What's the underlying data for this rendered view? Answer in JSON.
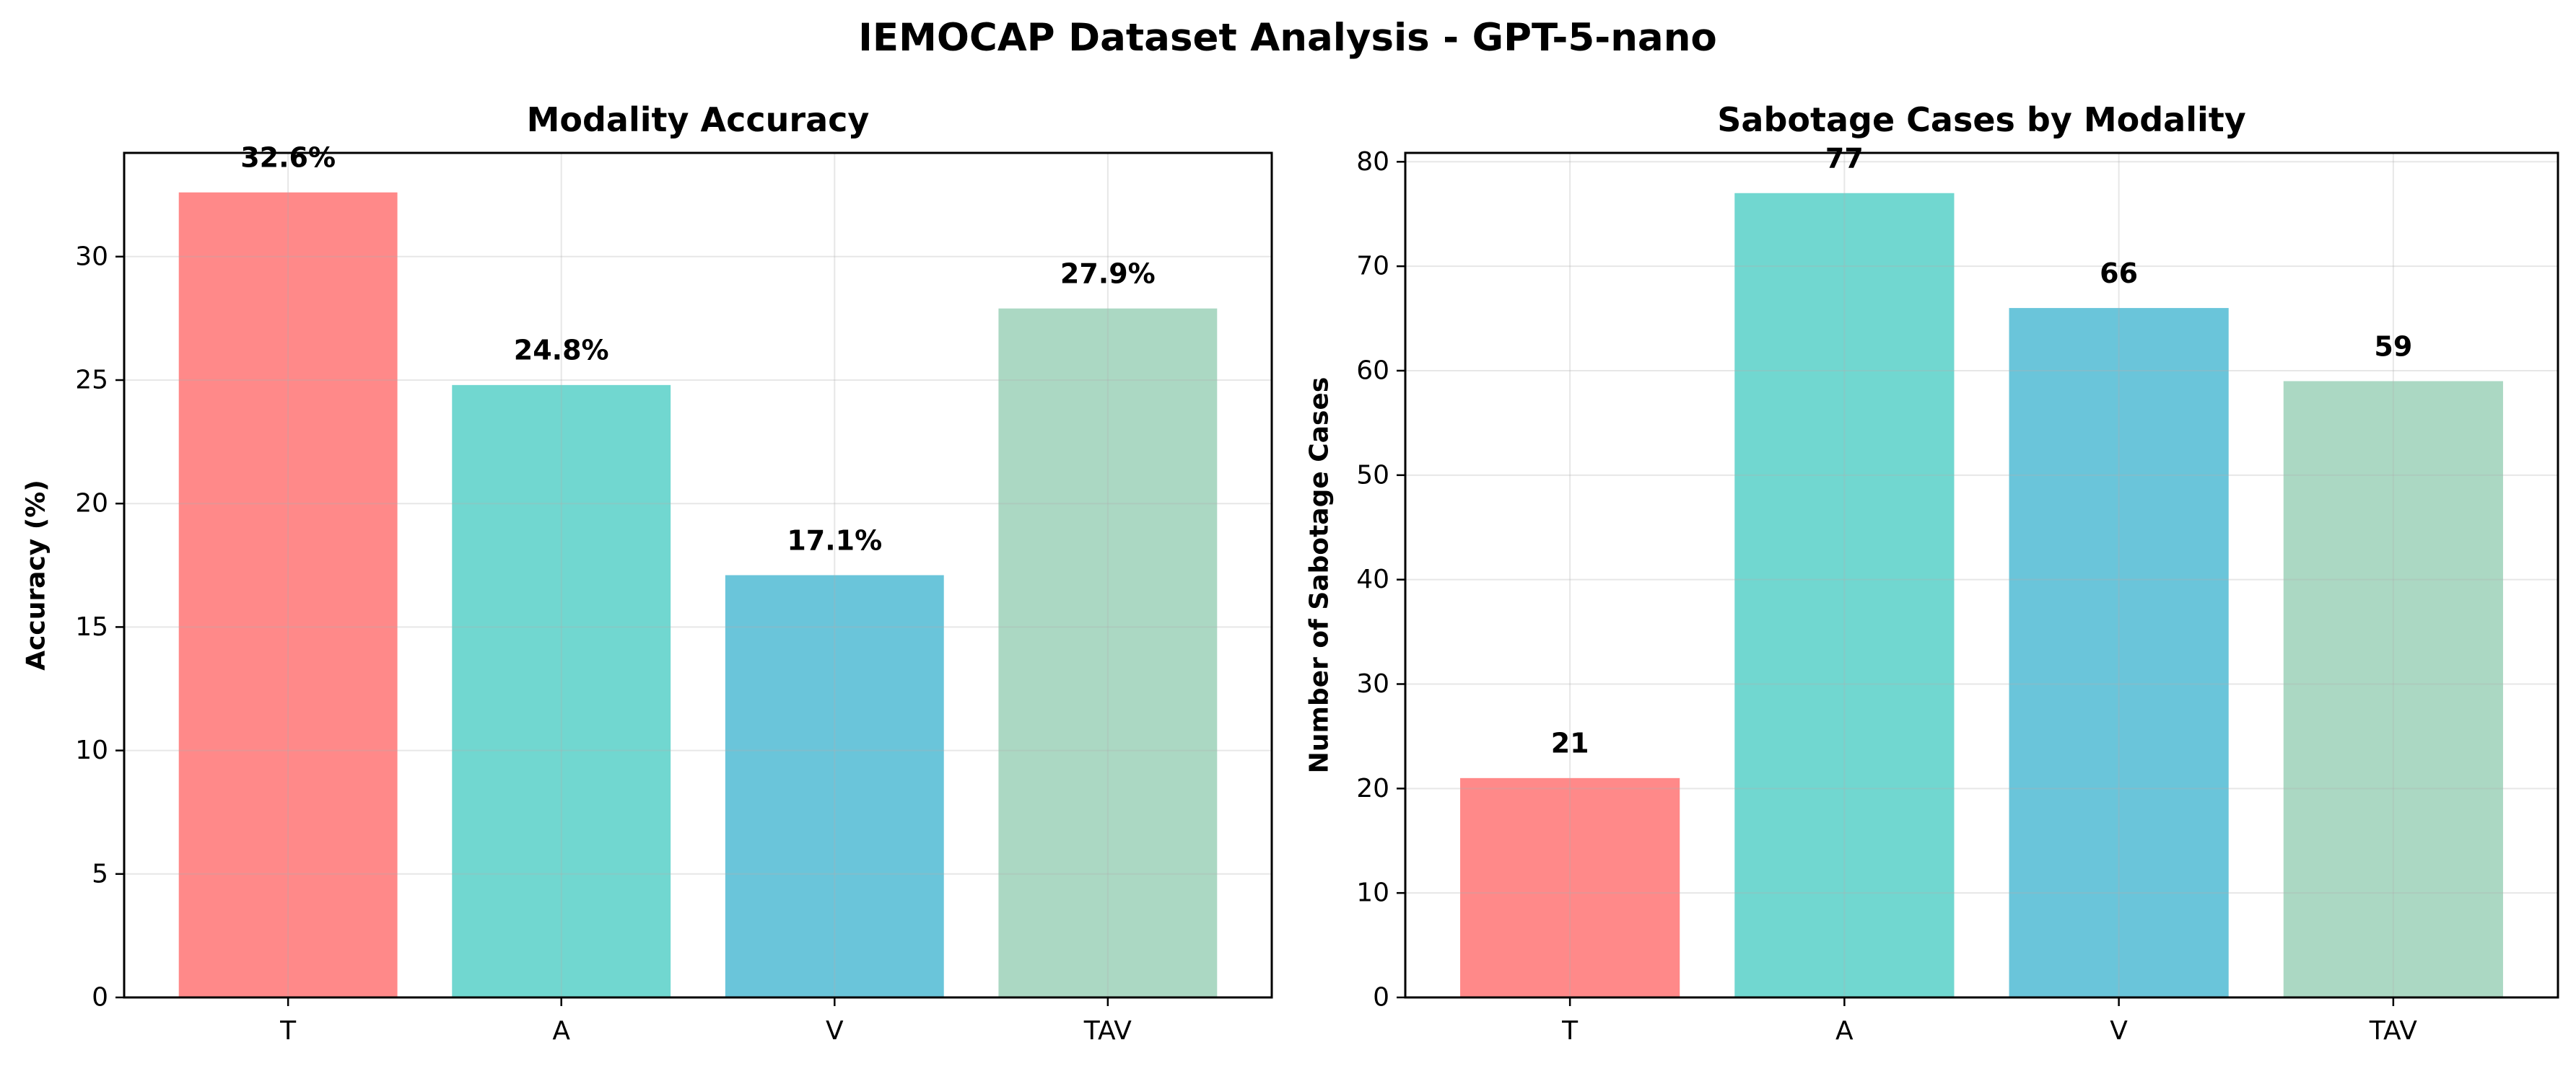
{
  "title": "IEMOCAP Dataset Analysis - GPT-5-nano",
  "chart_data": [
    {
      "type": "bar",
      "title": "Modality Accuracy",
      "xlabel": "",
      "ylabel": "Accuracy (%)",
      "categories": [
        "T",
        "A",
        "V",
        "TAV"
      ],
      "values": [
        32.6,
        24.8,
        17.1,
        27.9
      ],
      "data_labels": [
        "32.6%",
        "24.8%",
        "17.1%",
        "27.9%"
      ],
      "colors": [
        "#ff6b6b",
        "#4ecdc4",
        "#45b7d1",
        "#96ceb4"
      ],
      "ylim": [
        0,
        34.2
      ],
      "yticks": [
        0,
        5,
        10,
        15,
        20,
        25,
        30
      ],
      "grid": true
    },
    {
      "type": "bar",
      "title": "Sabotage Cases by Modality",
      "xlabel": "",
      "ylabel": "Number of Sabotage Cases",
      "categories": [
        "T",
        "A",
        "V",
        "TAV"
      ],
      "values": [
        21,
        77,
        66,
        59
      ],
      "data_labels": [
        "21",
        "77",
        "66",
        "59"
      ],
      "colors": [
        "#ff6b6b",
        "#4ecdc4",
        "#45b7d1",
        "#96ceb4"
      ],
      "ylim": [
        0,
        80.85
      ],
      "yticks": [
        0,
        10,
        20,
        30,
        40,
        50,
        60,
        70,
        80
      ],
      "grid": true
    }
  ]
}
